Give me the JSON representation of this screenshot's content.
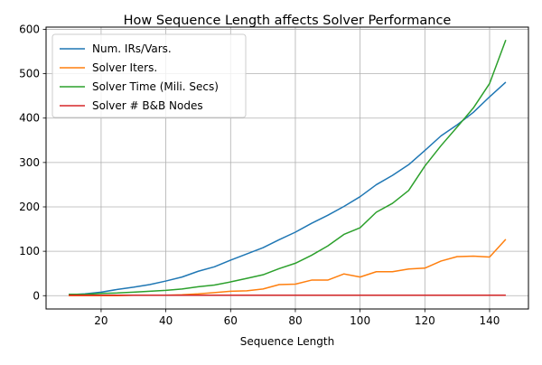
{
  "chart_data": {
    "type": "line",
    "title": "How Sequence Length affects Solver Performance",
    "xlabel": "Sequence Length",
    "ylabel": "",
    "xlim": [
      3,
      152
    ],
    "ylim": [
      -30,
      605
    ],
    "x_ticks": [
      20,
      40,
      60,
      80,
      100,
      120,
      140
    ],
    "y_ticks": [
      0,
      100,
      200,
      300,
      400,
      500,
      600
    ],
    "grid": true,
    "legend_position": "upper-left",
    "x": [
      10,
      15,
      20,
      25,
      30,
      35,
      40,
      45,
      50,
      55,
      60,
      65,
      70,
      75,
      80,
      85,
      90,
      95,
      100,
      105,
      110,
      115,
      120,
      125,
      130,
      135,
      140,
      145
    ],
    "series": [
      {
        "name": "Num. IRs/Vars.",
        "color": "#1f77b4",
        "values": [
          2,
          4,
          8,
          14,
          19,
          25,
          33,
          42,
          55,
          65,
          80,
          94,
          108,
          126,
          143,
          163,
          181,
          201,
          223,
          250,
          271,
          295,
          327,
          360,
          385,
          413,
          448,
          481
        ]
      },
      {
        "name": "Solver Iters.",
        "color": "#ff7f0e",
        "values": [
          0,
          0,
          0,
          0,
          1,
          1,
          1,
          2,
          4,
          7,
          10,
          11,
          15,
          25,
          26,
          35,
          35,
          49,
          42,
          54,
          54,
          60,
          62,
          78,
          88,
          89,
          87,
          127
        ]
      },
      {
        "name": "Solver Time (Mili. Secs)",
        "color": "#2ca02c",
        "values": [
          3,
          3,
          5,
          6,
          8,
          10,
          12,
          15,
          20,
          24,
          31,
          39,
          47,
          61,
          73,
          91,
          112,
          138,
          153,
          188,
          208,
          237,
          292,
          338,
          380,
          423,
          478,
          576
        ]
      },
      {
        "name": "Solver # B&B Nodes",
        "color": "#d62728",
        "values": [
          1,
          1,
          1,
          1,
          1,
          1,
          1,
          1,
          1,
          1,
          1,
          1,
          1,
          1,
          1,
          1,
          1,
          1,
          1,
          1,
          1,
          1,
          1,
          1,
          1,
          1,
          1,
          1
        ]
      }
    ]
  }
}
